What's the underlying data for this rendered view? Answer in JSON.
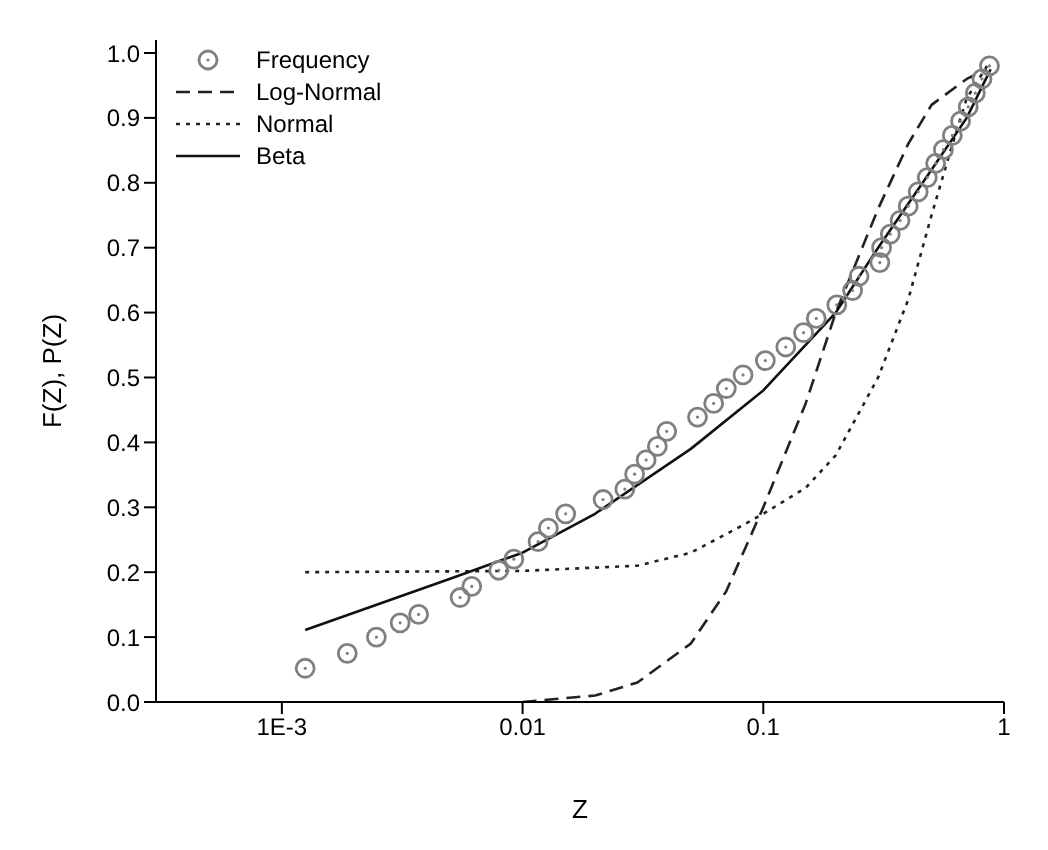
{
  "chart_data": {
    "type": "line",
    "xlabel": "Z",
    "ylabel": "F(Z), P(Z)",
    "log": "x",
    "legend": "top left",
    "grid": false,
    "xlim": [
      0.0003,
      1
    ],
    "xticks": [
      {
        "value": 0.001,
        "label": "1E-3"
      },
      0.01,
      0.1,
      1
    ],
    "ylim": [
      0,
      1.02
    ],
    "yticks": [
      {
        "value": 0,
        "label": "0.0"
      },
      0.1,
      0.2,
      0.3,
      0.4,
      0.5,
      0.6,
      0.7,
      0.8,
      0.9,
      {
        "value": 1,
        "label": "1.0"
      }
    ],
    "series": [
      {
        "name": "Frequency",
        "type": "scatter",
        "marker": "circle",
        "color": "#808080",
        "x": [
          0.00125,
          0.00187,
          0.00247,
          0.0031,
          0.0037,
          0.0055,
          0.00615,
          0.00796,
          0.0092,
          0.0116,
          0.0128,
          0.0151,
          0.0216,
          0.0266,
          0.0292,
          0.0326,
          0.0363,
          0.0397,
          0.0533,
          0.0622,
          0.0702,
          0.0824,
          0.102,
          0.124,
          0.147,
          0.166,
          0.202,
          0.235,
          0.25,
          0.305,
          0.31,
          0.337,
          0.37,
          0.4,
          0.44,
          0.48,
          0.52,
          0.56,
          0.61,
          0.66,
          0.71,
          0.76,
          0.81,
          0.87
        ],
        "values": [
          0.052,
          0.075,
          0.1,
          0.122,
          0.135,
          0.161,
          0.178,
          0.203,
          0.22,
          0.247,
          0.268,
          0.29,
          0.312,
          0.328,
          0.351,
          0.373,
          0.394,
          0.417,
          0.439,
          0.46,
          0.483,
          0.504,
          0.526,
          0.547,
          0.569,
          0.591,
          0.612,
          0.634,
          0.656,
          0.677,
          0.7,
          0.721,
          0.742,
          0.764,
          0.786,
          0.808,
          0.83,
          0.851,
          0.873,
          0.895,
          0.917,
          0.938,
          0.96,
          0.98
        ]
      },
      {
        "name": "Log-Normal",
        "line_style": "dashed",
        "marker": "none",
        "color": "#222222",
        "x": [
          0.01,
          0.02,
          0.03,
          0.05,
          0.07,
          0.1,
          0.15,
          0.2,
          0.3,
          0.4,
          0.5,
          0.7,
          0.85
        ],
        "values": [
          0,
          0.01,
          0.03,
          0.09,
          0.17,
          0.3,
          0.46,
          0.6,
          0.76,
          0.86,
          0.92,
          0.96,
          0.975
        ]
      },
      {
        "name": "Normal",
        "line_style": "dotted",
        "marker": "none",
        "color": "#222222",
        "x": [
          0.00125,
          0.01,
          0.03,
          0.05,
          0.08,
          0.1,
          0.15,
          0.2,
          0.3,
          0.4,
          0.5,
          0.6,
          0.7,
          0.85
        ],
        "values": [
          0.2,
          0.202,
          0.21,
          0.23,
          0.27,
          0.29,
          0.33,
          0.38,
          0.5,
          0.62,
          0.75,
          0.85,
          0.93,
          0.98
        ]
      },
      {
        "name": "Beta",
        "line_style": "solid",
        "marker": "none",
        "color": "#111111",
        "x": [
          0.00125,
          0.005,
          0.01,
          0.02,
          0.05,
          0.1,
          0.2,
          0.3,
          0.5,
          0.7,
          0.88
        ],
        "values": [
          0.111,
          0.19,
          0.23,
          0.29,
          0.39,
          0.48,
          0.6,
          0.7,
          0.82,
          0.9,
          0.975
        ]
      }
    ]
  }
}
